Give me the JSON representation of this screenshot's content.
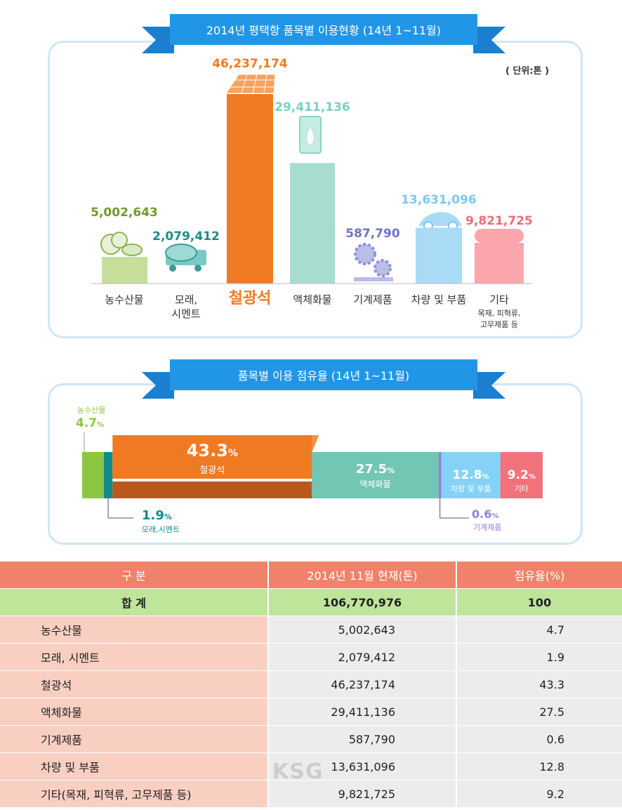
{
  "chart1": {
    "title": "2014년 평택항 품목별 이용현황 (14년 1~11월)",
    "unit": "( 단위:톤 )"
  },
  "chart2": {
    "title": "품목별 이용 점유율 (14년 1~11월)"
  },
  "chart_data": [
    {
      "type": "bar",
      "title": "2014년 평택항 품목별 이용현황 (14년 1~11월)",
      "unit": "( 단위:톤 )",
      "categories": [
        "농수산물",
        "모래, 시멘트",
        "철광석",
        "액체화물",
        "기계제품",
        "차량 및 부품",
        "기타"
      ],
      "category_lines": [
        [
          "농수산물"
        ],
        [
          "모래,",
          "시멘트"
        ],
        [
          "철광석"
        ],
        [
          "액체화물"
        ],
        [
          "기계제품"
        ],
        [
          "차량 및 부품"
        ],
        [
          "기타"
        ]
      ],
      "sub_labels": [
        "",
        "",
        "",
        "",
        "",
        "",
        "목재, 피혁류,|고무제품 등"
      ],
      "values": [
        5002643,
        2079412,
        46237174,
        29411136,
        587790,
        13631096,
        9821725
      ],
      "value_labels": [
        "5,002,643",
        "2,079,412",
        "46,237,174",
        "29,411,136",
        "587,790",
        "13,631,096",
        "9,821,725"
      ],
      "colors": [
        "#c5df9a",
        "#7cc9c4",
        "#f07a22",
        "#a7ddd1",
        "#b9bde8",
        "#a9dbf6",
        "#fba5ad"
      ],
      "label_colors": [
        "#6f9a2e",
        "#1e8a86",
        "#f07a22",
        "#7ccfc0",
        "#6d74c4",
        "#7bc8ef",
        "#ef6c78"
      ],
      "highlight": "철광석"
    },
    {
      "type": "bar",
      "orientation": "horizontal-stacked",
      "title": "품목별 이용 점유율 (14년 1~11월)",
      "categories": [
        "농수산물",
        "모래,시멘트",
        "철광석",
        "액체화물",
        "기계제품",
        "차량 및 부품",
        "기타"
      ],
      "values": [
        4.7,
        1.9,
        43.3,
        27.5,
        0.6,
        12.8,
        9.2
      ],
      "value_labels": [
        "4.7",
        "1.9",
        "43.3",
        "27.5",
        "0.6",
        "12.8",
        "9.2"
      ],
      "percent_sign": "%",
      "colors": [
        "#8dc63f",
        "#138a8a",
        "#f07a22",
        "#72c6b4",
        "#8e81d6",
        "#86d2f6",
        "#f2727c"
      ]
    }
  ],
  "table": {
    "headers": [
      "구  분",
      "2014년 11월 현재(톤)",
      "점유율(%)"
    ],
    "total": {
      "name": "합  계",
      "value": "106,770,976",
      "pct": "100"
    },
    "rows": [
      {
        "name": "농수산물",
        "value": "5,002,643",
        "pct": "4.7"
      },
      {
        "name": "모래, 시멘트",
        "value": "2,079,412",
        "pct": "1.9"
      },
      {
        "name": "철광석",
        "value": "46,237,174",
        "pct": "43.3"
      },
      {
        "name": "액체화물",
        "value": "29,411,136",
        "pct": "27.5"
      },
      {
        "name": "기계제품",
        "value": "587,790",
        "pct": "0.6"
      },
      {
        "name": "차량 및 부품",
        "value": "13,631,096",
        "pct": "12.8"
      },
      {
        "name": "기타(목재, 피혁류, 고무제품 등)",
        "value": "9,821,725",
        "pct": "9.2"
      }
    ]
  },
  "watermark": "KSG"
}
